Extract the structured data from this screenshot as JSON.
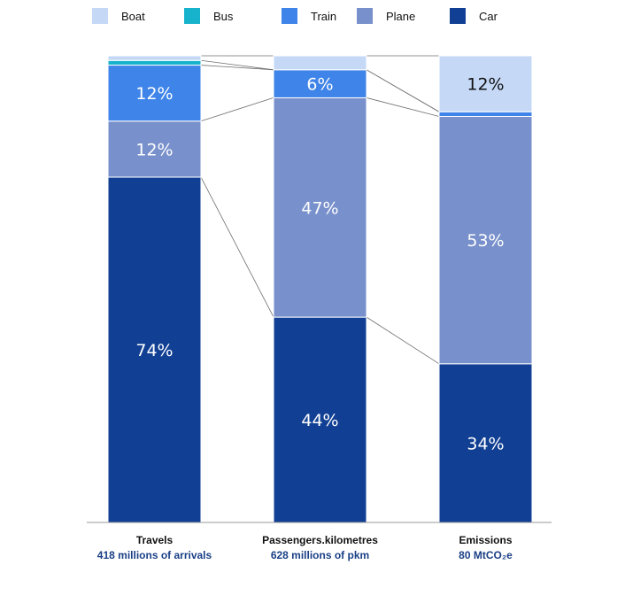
{
  "chart_data": {
    "type": "bar",
    "stacked": true,
    "normalized_percent": true,
    "legend_position": "top",
    "grid": false,
    "colors": {
      "Boat": "#c5d9f7",
      "Bus": "#17b3cc",
      "Train": "#3f84e8",
      "Plane": "#7890cb",
      "Car": "#113f93"
    },
    "label_colors": {
      "Boat": "#111111",
      "Bus": "#111111",
      "Train": "#ffffff",
      "Plane": "#ffffff",
      "Car": "#ffffff"
    },
    "categories": [
      {
        "name": "Travels",
        "subtitle": "418 millions of arrivals"
      },
      {
        "name": "Passengers.kilometres",
        "subtitle": "628 millions of pkm"
      },
      {
        "name": "Emissions",
        "subtitle": "80 MtCO₂e"
      }
    ],
    "series": [
      {
        "name": "Car",
        "values": [
          74,
          44,
          34
        ],
        "labels": [
          "74%",
          "44%",
          "34%"
        ]
      },
      {
        "name": "Plane",
        "values": [
          12,
          47,
          53
        ],
        "labels": [
          "12%",
          "47%",
          "53%"
        ]
      },
      {
        "name": "Train",
        "values": [
          12,
          6,
          1
        ],
        "labels": [
          "12%",
          "6%",
          ""
        ]
      },
      {
        "name": "Bus",
        "values": [
          1,
          0,
          0
        ],
        "labels": [
          "",
          "",
          ""
        ]
      },
      {
        "name": "Boat",
        "values": [
          1,
          3,
          12
        ],
        "labels": [
          "",
          "",
          "12%"
        ]
      }
    ],
    "legend_order": [
      "Boat",
      "Bus",
      "Train",
      "Plane",
      "Car"
    ]
  }
}
